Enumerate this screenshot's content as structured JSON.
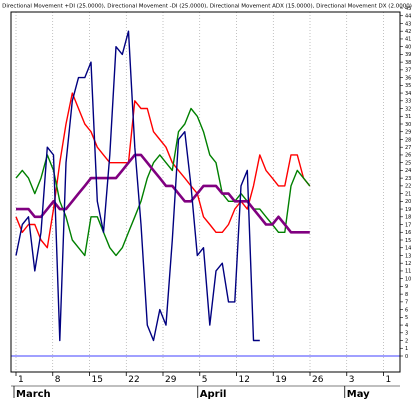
{
  "chart_data": {
    "type": "line",
    "title": "Directional Movement +DI (25.0000), Directional Movement -DI (25.0000), Directional Movement ADX (15.0000), Directional Movement DX (2.0000)",
    "xlabel": "",
    "ylabel": "",
    "ylim": [
      0,
      45
    ],
    "grid": true,
    "legend": "none",
    "y_ticks": [
      0,
      1,
      2,
      3,
      4,
      5,
      6,
      7,
      8,
      9,
      10,
      11,
      12,
      13,
      14,
      15,
      16,
      17,
      18,
      19,
      20,
      21,
      22,
      23,
      24,
      25,
      26,
      27,
      28,
      29,
      30,
      31,
      32,
      33,
      34,
      35,
      36,
      37,
      38,
      39,
      40,
      41,
      42,
      43,
      44,
      45
    ],
    "x_axis": {
      "day_labels": [
        "1",
        "8",
        "15",
        "22",
        "29",
        "5",
        "12",
        "19",
        "26",
        "3",
        "1"
      ],
      "month_labels": [
        "March",
        "April",
        "May"
      ]
    },
    "baseline": 0,
    "series": [
      {
        "color": "#ff0000",
        "points": [
          [
            1,
            18
          ],
          [
            2,
            16
          ],
          [
            3,
            17
          ],
          [
            4,
            17
          ],
          [
            5,
            15
          ],
          [
            6,
            14
          ],
          [
            7,
            19
          ],
          [
            8,
            25
          ],
          [
            9,
            30
          ],
          [
            10,
            34
          ],
          [
            11,
            32
          ],
          [
            12,
            30
          ],
          [
            13,
            29
          ],
          [
            14,
            27
          ],
          [
            15,
            26
          ],
          [
            16,
            25
          ],
          [
            17,
            25
          ],
          [
            18,
            25
          ],
          [
            19,
            25
          ],
          [
            20,
            33
          ],
          [
            21,
            32
          ],
          [
            22,
            32
          ],
          [
            23,
            29
          ],
          [
            24,
            28
          ],
          [
            25,
            27
          ],
          [
            26,
            25
          ],
          [
            27,
            24
          ],
          [
            28,
            23
          ],
          [
            29,
            22
          ],
          [
            30,
            21
          ],
          [
            31,
            18
          ],
          [
            32,
            17
          ],
          [
            33,
            16
          ],
          [
            34,
            16
          ],
          [
            35,
            17
          ],
          [
            36,
            19
          ],
          [
            37,
            20
          ],
          [
            38,
            19
          ],
          [
            39,
            22
          ],
          [
            40,
            26
          ],
          [
            41,
            24
          ],
          [
            42,
            23
          ],
          [
            43,
            22
          ],
          [
            44,
            22
          ],
          [
            45,
            26
          ],
          [
            46,
            26
          ],
          [
            47,
            23
          ],
          [
            48,
            22
          ]
        ]
      },
      {
        "color": "#008000",
        "points": [
          [
            1,
            23
          ],
          [
            2,
            24
          ],
          [
            3,
            23
          ],
          [
            4,
            21
          ],
          [
            5,
            23
          ],
          [
            6,
            26
          ],
          [
            7,
            24
          ],
          [
            8,
            20
          ],
          [
            9,
            18
          ],
          [
            10,
            15
          ],
          [
            11,
            14
          ],
          [
            12,
            13
          ],
          [
            13,
            18
          ],
          [
            14,
            18
          ],
          [
            15,
            16
          ],
          [
            16,
            14
          ],
          [
            17,
            13
          ],
          [
            18,
            14
          ],
          [
            19,
            16
          ],
          [
            20,
            18
          ],
          [
            21,
            20
          ],
          [
            22,
            23
          ],
          [
            23,
            25
          ],
          [
            24,
            26
          ],
          [
            25,
            25
          ],
          [
            26,
            24
          ],
          [
            27,
            29
          ],
          [
            28,
            30
          ],
          [
            29,
            32
          ],
          [
            30,
            31
          ],
          [
            31,
            29
          ],
          [
            32,
            26
          ],
          [
            33,
            25
          ],
          [
            34,
            21
          ],
          [
            35,
            20
          ],
          [
            36,
            20
          ],
          [
            37,
            21
          ],
          [
            38,
            20
          ],
          [
            39,
            19
          ],
          [
            40,
            19
          ],
          [
            41,
            18
          ],
          [
            42,
            17
          ],
          [
            43,
            16
          ],
          [
            44,
            16
          ],
          [
            45,
            22
          ],
          [
            46,
            24
          ],
          [
            47,
            23
          ],
          [
            48,
            22
          ]
        ]
      },
      {
        "color": "#800080",
        "points": [
          [
            1,
            19
          ],
          [
            2,
            19
          ],
          [
            3,
            19
          ],
          [
            4,
            18
          ],
          [
            5,
            18
          ],
          [
            6,
            19
          ],
          [
            7,
            20
          ],
          [
            8,
            19
          ],
          [
            9,
            19
          ],
          [
            10,
            20
          ],
          [
            11,
            21
          ],
          [
            12,
            22
          ],
          [
            13,
            23
          ],
          [
            14,
            23
          ],
          [
            15,
            23
          ],
          [
            16,
            23
          ],
          [
            17,
            23
          ],
          [
            18,
            24
          ],
          [
            19,
            25
          ],
          [
            20,
            26
          ],
          [
            21,
            26
          ],
          [
            22,
            25
          ],
          [
            23,
            24
          ],
          [
            24,
            23
          ],
          [
            25,
            22
          ],
          [
            26,
            22
          ],
          [
            27,
            21
          ],
          [
            28,
            20
          ],
          [
            29,
            20
          ],
          [
            30,
            21
          ],
          [
            31,
            22
          ],
          [
            32,
            22
          ],
          [
            33,
            22
          ],
          [
            34,
            21
          ],
          [
            35,
            21
          ],
          [
            36,
            20
          ],
          [
            37,
            20
          ],
          [
            38,
            20
          ],
          [
            39,
            19
          ],
          [
            40,
            18
          ],
          [
            41,
            17
          ],
          [
            42,
            17
          ],
          [
            43,
            18
          ],
          [
            44,
            17
          ],
          [
            45,
            16
          ],
          [
            46,
            16
          ],
          [
            47,
            16
          ],
          [
            48,
            16
          ]
        ]
      },
      {
        "color": "#000080",
        "points": [
          [
            1,
            13
          ],
          [
            2,
            17
          ],
          [
            3,
            18
          ],
          [
            4,
            11
          ],
          [
            5,
            16
          ],
          [
            6,
            27
          ],
          [
            7,
            26
          ],
          [
            8,
            2
          ],
          [
            9,
            25
          ],
          [
            10,
            33
          ],
          [
            11,
            36
          ],
          [
            12,
            36
          ],
          [
            13,
            38
          ],
          [
            14,
            20
          ],
          [
            15,
            16
          ],
          [
            16,
            26
          ],
          [
            17,
            40
          ],
          [
            18,
            39
          ],
          [
            19,
            42
          ],
          [
            20,
            27
          ],
          [
            21,
            17
          ],
          [
            22,
            4
          ],
          [
            23,
            2
          ],
          [
            24,
            6
          ],
          [
            25,
            4
          ],
          [
            26,
            15
          ],
          [
            27,
            28
          ],
          [
            28,
            29
          ],
          [
            29,
            22
          ],
          [
            30,
            13
          ],
          [
            31,
            14
          ],
          [
            32,
            4
          ],
          [
            33,
            11
          ],
          [
            34,
            12
          ],
          [
            35,
            7
          ],
          [
            36,
            7
          ],
          [
            37,
            22
          ],
          [
            38,
            24
          ],
          [
            39,
            2
          ],
          [
            40,
            2
          ]
        ]
      }
    ]
  }
}
